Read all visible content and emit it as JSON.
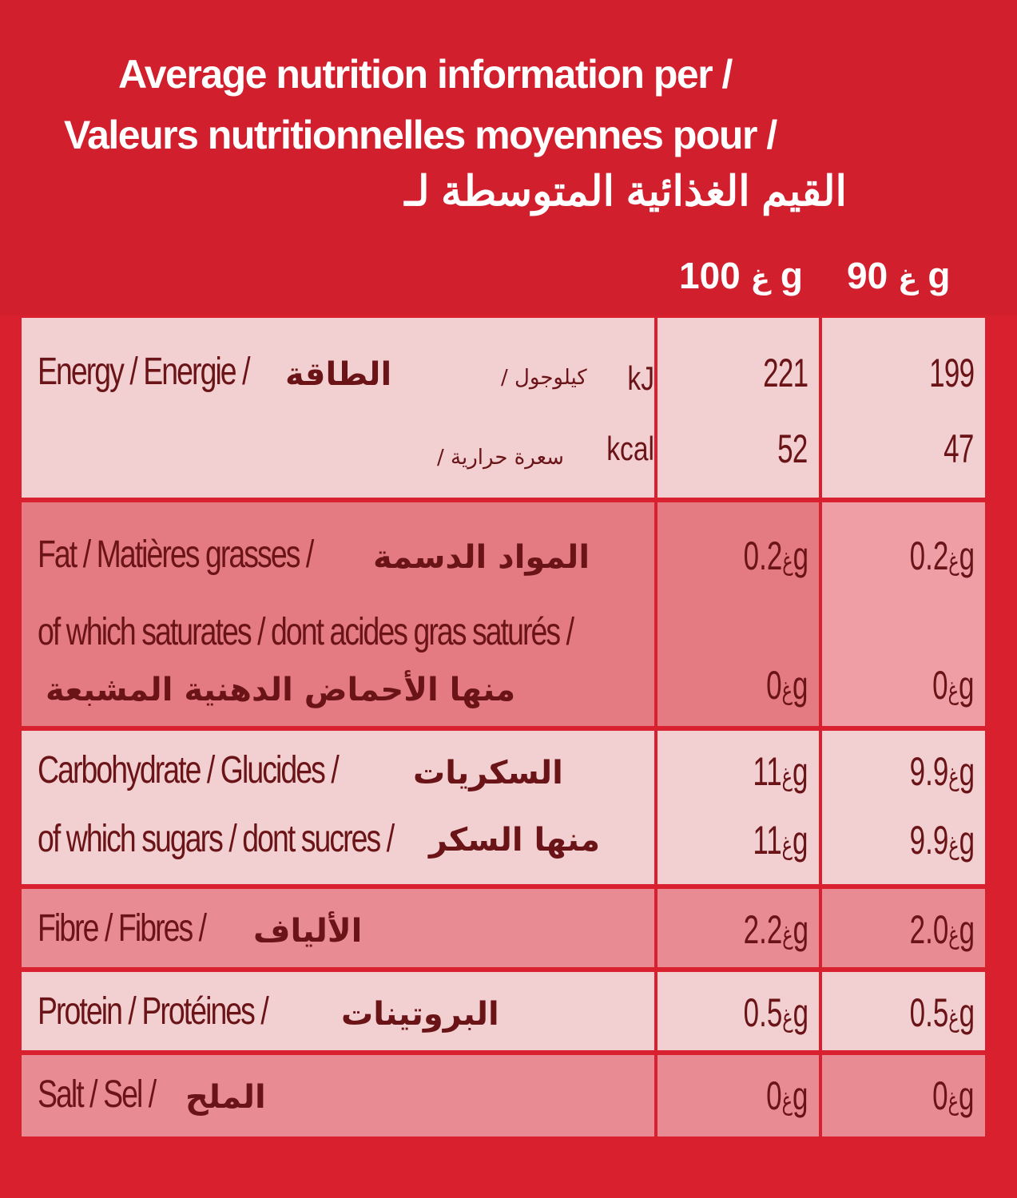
{
  "header": {
    "title_en": "Average nutrition information per /",
    "title_fr": "Valeurs nutritionnelles moyennes  pour /",
    "title_ar": "القيم الغذائية المتوسطة لـ",
    "col_100": "100 g",
    "col_100_ar": "غ",
    "col_90": "90 g",
    "col_90_ar": "غ"
  },
  "rows": {
    "energy": {
      "label": "Energy / Energie /",
      "label_ar": "الطاقة",
      "unit_kj": "kJ",
      "unit_kj_ar": "كيلوجول /",
      "unit_kcal": "kcal",
      "unit_kcal_ar": "سعرة حرارية /",
      "kj_100": "221",
      "kj_90": "199",
      "kcal_100": "52",
      "kcal_90": "47"
    },
    "fat": {
      "label": "Fat / Matières grasses /",
      "label_ar": "المواد الدسمة",
      "sat_label": "of which saturates / dont acides gras saturés /",
      "sat_label_ar": "منها الأحماض الدهنية المشبعة",
      "v100": "0.2",
      "v90": "0.2",
      "sat_100": "0",
      "sat_90": "0"
    },
    "carbohydrate": {
      "label": "Carbohydrate / Glucides /",
      "label_ar": "السكريات",
      "sugars_label": "of which sugars / dont sucres /",
      "sugars_label_ar": "منها السكر",
      "v100": "11",
      "v90": "9.9",
      "sugars_100": "11",
      "sugars_90": "9.9"
    },
    "fibre": {
      "label": "Fibre / Fibres /",
      "label_ar": "الألياف",
      "v100": "2.2",
      "v90": "2.0"
    },
    "protein": {
      "label": "Protein / Protéines /",
      "label_ar": "البروتينات",
      "v100": "0.5",
      "v90": "0.5"
    },
    "salt": {
      "label": "Salt / Sel /",
      "label_ar": "الملح",
      "v100": "0",
      "v90": "0"
    }
  },
  "unit_g": "g",
  "unit_g_ar": "غ"
}
